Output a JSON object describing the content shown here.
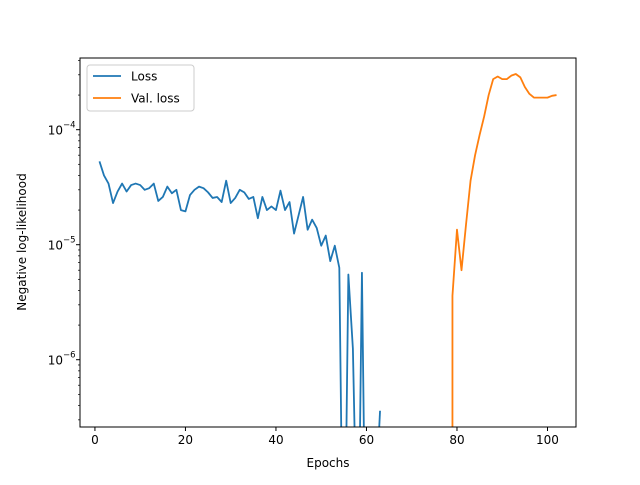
{
  "chart_data": {
    "type": "line",
    "title": "",
    "xlabel": "Epochs",
    "ylabel": "Negative log-likelihood",
    "xlim": [
      -3.3,
      106.3
    ],
    "ylim": [
      2.6e-07,
      0.00042
    ],
    "yscale": "log",
    "grid": false,
    "legend_position": "top-left",
    "x_ticks": [
      {
        "value": 0,
        "label": "0"
      },
      {
        "value": 20,
        "label": "20"
      },
      {
        "value": 40,
        "label": "40"
      },
      {
        "value": 60,
        "label": "60"
      },
      {
        "value": 80,
        "label": "80"
      },
      {
        "value": 100,
        "label": "100"
      }
    ],
    "y_ticks": [
      {
        "value": 1e-06,
        "base": "10",
        "exp": "−6"
      },
      {
        "value": 1e-05,
        "base": "10",
        "exp": "−5"
      },
      {
        "value": 0.0001,
        "base": "10",
        "exp": "−4"
      }
    ],
    "series": [
      {
        "name": "Loss",
        "color": "#1f77b4",
        "points": [
          [
            1,
            5.3e-05
          ],
          [
            2,
            4e-05
          ],
          [
            3,
            3.4e-05
          ],
          [
            4,
            2.3e-05
          ],
          [
            5,
            2.9e-05
          ],
          [
            6,
            3.4e-05
          ],
          [
            7,
            2.9e-05
          ],
          [
            8,
            3.3e-05
          ],
          [
            9,
            3.4e-05
          ],
          [
            10,
            3.3e-05
          ],
          [
            11,
            3e-05
          ],
          [
            12,
            3.1e-05
          ],
          [
            13,
            3.4e-05
          ],
          [
            14,
            2.4e-05
          ],
          [
            15,
            2.6e-05
          ],
          [
            16,
            3.2e-05
          ],
          [
            17,
            2.8e-05
          ],
          [
            18,
            3e-05
          ],
          [
            19,
            2e-05
          ],
          [
            20,
            1.95e-05
          ],
          [
            21,
            2.7e-05
          ],
          [
            22,
            3e-05
          ],
          [
            23,
            3.2e-05
          ],
          [
            24,
            3.1e-05
          ],
          [
            25,
            2.85e-05
          ],
          [
            26,
            2.55e-05
          ],
          [
            27,
            2.6e-05
          ],
          [
            28,
            2.35e-05
          ],
          [
            29,
            3.6e-05
          ],
          [
            30,
            2.3e-05
          ],
          [
            31,
            2.55e-05
          ],
          [
            32,
            3e-05
          ],
          [
            33,
            2.85e-05
          ],
          [
            34,
            2.5e-05
          ],
          [
            35,
            2.6e-05
          ],
          [
            36,
            1.7e-05
          ],
          [
            37,
            2.6e-05
          ],
          [
            38,
            2e-05
          ],
          [
            39,
            2.15e-05
          ],
          [
            40,
            2e-05
          ],
          [
            41,
            2.95e-05
          ],
          [
            42,
            2e-05
          ],
          [
            43,
            2.35e-05
          ],
          [
            44,
            1.25e-05
          ],
          [
            45,
            1.8e-05
          ],
          [
            46,
            2.6e-05
          ],
          [
            47,
            1.35e-05
          ],
          [
            48,
            1.65e-05
          ],
          [
            49,
            1.4e-05
          ],
          [
            50,
            9.8e-06
          ],
          [
            51,
            1.2e-05
          ],
          [
            52,
            7.2e-06
          ],
          [
            53,
            9.8e-06
          ],
          [
            54,
            6.3e-06
          ],
          [
            55,
            null
          ],
          [
            56,
            5.5e-06
          ],
          [
            57,
            1.25e-06
          ],
          [
            58,
            null
          ],
          [
            59,
            5.7e-06
          ],
          [
            60,
            null
          ],
          [
            61,
            null
          ],
          [
            62,
            null
          ],
          [
            63,
            3.6e-07
          ]
        ]
      },
      {
        "name": "Val. loss",
        "color": "#ff7f0e",
        "points": [
          [
            79,
            3.6e-06
          ],
          [
            80,
            1.35e-05
          ],
          [
            81,
            6e-06
          ],
          [
            82,
            1.5e-05
          ],
          [
            83,
            3.6e-05
          ],
          [
            84,
            6e-05
          ],
          [
            85,
            9e-05
          ],
          [
            86,
            0.00013
          ],
          [
            87,
            0.0002
          ],
          [
            88,
            0.000275
          ],
          [
            89,
            0.00029
          ],
          [
            90,
            0.000275
          ],
          [
            91,
            0.000275
          ],
          [
            92,
            0.000295
          ],
          [
            93,
            0.000305
          ],
          [
            94,
            0.000285
          ],
          [
            95,
            0.000235
          ],
          [
            96,
            0.000205
          ],
          [
            97,
            0.00019
          ],
          [
            98,
            0.00019
          ],
          [
            99,
            0.00019
          ],
          [
            100,
            0.00019
          ],
          [
            101,
            0.000197
          ],
          [
            102,
            0.0002
          ]
        ]
      }
    ]
  }
}
